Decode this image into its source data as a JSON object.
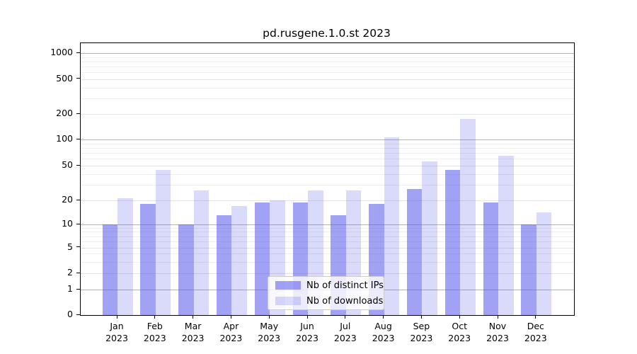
{
  "figure": {
    "title": "pd.rusgene.1.0.st 2023"
  },
  "chart_data": {
    "type": "bar",
    "title": "pd.rusgene.1.0.st 2023",
    "categories": [
      "Jan 2023",
      "Feb 2023",
      "Mar 2023",
      "Apr 2023",
      "May 2023",
      "Jun 2023",
      "Jul 2023",
      "Aug 2023",
      "Sep 2023",
      "Oct 2023",
      "Nov 2023",
      "Dec 2023"
    ],
    "series": [
      {
        "name": "Nb of distinct IPs",
        "values": [
          10,
          18,
          10,
          13,
          19,
          19,
          13,
          18,
          27,
          45,
          19,
          10
        ]
      },
      {
        "name": "Nb of downloads",
        "values": [
          21,
          45,
          26,
          17,
          20,
          26,
          26,
          105,
          56,
          175,
          65,
          14
        ]
      }
    ],
    "xlabel": "",
    "ylabel": "",
    "yscale": "symlog",
    "yticks": [
      0,
      1,
      2,
      5,
      10,
      20,
      50,
      100,
      200,
      500,
      1000
    ],
    "ylim": [
      0,
      1400
    ],
    "grid": true,
    "legend_position": "lower center"
  },
  "legend": {
    "items": [
      {
        "label": "Nb of distinct IPs",
        "series": "ip"
      },
      {
        "label": "Nb of downloads",
        "series": "dl"
      }
    ]
  },
  "colors": {
    "bar_ip": "rgba(85,85,235,0.55)",
    "bar_dl": "rgba(85,85,235,0.22)",
    "grid_decade": "#b3b3b3",
    "grid_submajor": "#e3e3e3",
    "grid_minor": "#eeeeee",
    "spine": "#000000",
    "text": "#000000"
  }
}
